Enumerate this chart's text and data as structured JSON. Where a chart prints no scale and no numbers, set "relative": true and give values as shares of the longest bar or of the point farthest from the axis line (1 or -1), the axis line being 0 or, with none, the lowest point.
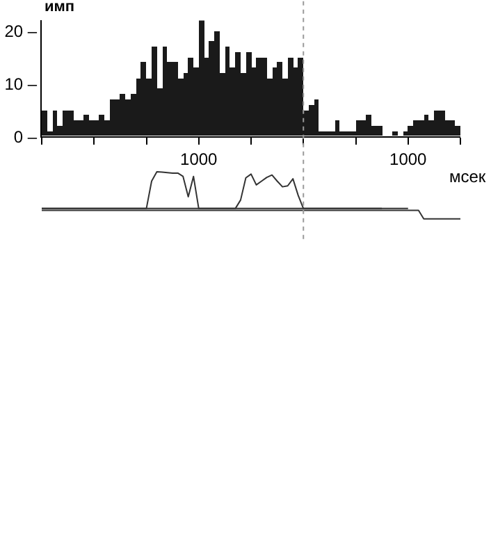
{
  "chart_data": [
    {
      "type": "histogram",
      "ylabel": "имп",
      "xlabel": "мсек",
      "color": "#1a1a1a",
      "bins": [
        -2500,
        -2450,
        -2400,
        -2350,
        -2300,
        -2250,
        -2200,
        -2150,
        -2100,
        -2050,
        -2000,
        -1950,
        -1900,
        -1850,
        -1800,
        -1750,
        -1700,
        -1650,
        -1600,
        -1550,
        -1500,
        -1450,
        -1400,
        -1350,
        -1300,
        -1250,
        -1200,
        -1150,
        -1100,
        -1050,
        -1000,
        -950,
        -900,
        -850,
        -800,
        -750,
        -700,
        -650,
        -600,
        -550,
        -500,
        -450,
        -400,
        -350,
        -300,
        -250,
        -200,
        -150,
        -100,
        -50,
        0,
        50,
        100,
        150,
        200,
        250,
        300,
        350,
        400,
        450,
        500,
        550,
        600,
        650,
        700,
        750,
        800,
        850,
        900,
        950,
        1000,
        1050,
        1100,
        1150,
        1200,
        1250,
        1300,
        1350,
        1400,
        1450,
        1500
      ],
      "values": [
        5,
        1,
        5,
        2,
        5,
        5,
        3,
        3,
        4,
        3,
        3,
        4,
        3,
        7,
        7,
        8,
        7,
        8,
        11,
        14,
        11,
        17,
        9,
        17,
        14,
        14,
        11,
        12,
        15,
        13,
        22,
        15,
        18,
        20,
        12,
        17,
        13,
        16,
        12,
        16,
        13,
        15,
        15,
        11,
        13,
        14,
        11,
        15,
        13,
        15,
        5,
        6,
        7,
        1,
        1,
        1,
        3,
        1,
        1,
        1,
        3,
        3,
        4,
        2,
        2,
        0,
        0,
        1,
        0,
        1,
        2,
        3,
        3,
        4,
        3,
        5,
        5,
        3,
        3,
        2
      ],
      "xlim": [
        -2500,
        1500
      ],
      "xticks": [
        {
          "value": -2500,
          "label": null
        },
        {
          "value": -2000,
          "label": null
        },
        {
          "value": -1500,
          "label": null
        },
        {
          "value": -1000,
          "label": "1000"
        },
        {
          "value": -500,
          "label": null
        },
        {
          "value": 0,
          "label": null
        },
        {
          "value": 500,
          "label": null
        },
        {
          "value": 1000,
          "label": "1000"
        },
        {
          "value": 1500,
          "label": null
        }
      ],
      "ylim": [
        0,
        22
      ],
      "yticks": [
        {
          "value": 0,
          "label": "0 –"
        },
        {
          "value": 10,
          "label": "10 –"
        },
        {
          "value": 20,
          "label": "20 –"
        }
      ],
      "ref_lines": [
        {
          "axis": "x",
          "value": 0,
          "color": "#999999",
          "line_style": "dotted"
        }
      ]
    },
    {
      "type": "line",
      "relative": true,
      "categories": [
        null,
        null,
        null,
        null,
        null,
        null,
        null,
        null,
        null,
        null,
        null,
        null,
        null,
        null,
        null,
        null,
        null,
        null,
        null,
        null,
        null,
        null,
        null,
        null,
        null,
        null,
        null,
        null,
        null,
        null,
        null,
        null,
        null,
        null,
        null,
        null,
        null,
        null,
        null,
        null,
        null,
        null,
        null,
        null,
        null,
        null,
        null,
        null,
        null,
        null,
        null,
        null,
        null,
        null,
        null,
        null,
        null,
        null,
        null,
        null,
        null,
        null,
        null,
        null,
        null,
        null,
        null,
        null,
        null,
        null,
        null,
        null,
        null,
        null,
        null,
        null,
        null,
        null,
        null,
        null,
        null
      ],
      "series": [
        {
          "color": "#333333",
          "values": [
            0.22,
            0.22,
            0.22,
            0.22,
            0.22,
            0.22,
            0.22,
            0.22,
            0.22,
            0.22,
            0.22,
            0.22,
            0.22,
            0.22,
            0.22,
            0.22,
            0.22,
            0.22,
            0.22,
            0.22,
            0.22,
            0.8,
            1,
            0.99,
            0.98,
            0.97,
            0.97,
            0.9,
            0.47,
            0.9,
            0.22,
            0.22,
            0.22,
            0.22,
            0.22,
            0.22,
            0.22,
            0.22,
            0.22,
            0.22,
            0.22,
            0.22,
            0.22,
            0.22,
            0.22,
            0.22,
            0.22,
            0.22,
            0.22,
            0.22,
            0.22,
            0.22,
            0.22,
            0.22,
            0.22,
            0.22,
            0.22,
            0.22,
            0.22,
            0.22,
            0.22,
            0.22,
            0.22,
            0.22,
            0.22,
            0.22,
            0.22,
            0.22,
            0.22,
            0.22,
            0.22,
            null,
            null,
            null,
            null,
            null,
            null,
            null,
            null,
            null,
            null
          ]
        },
        {
          "color": "#333333",
          "values": [
            0.22,
            0.22,
            0.22,
            0.22,
            0.22,
            0.22,
            0.22,
            0.22,
            0.22,
            0.22,
            0.22,
            0.22,
            0.22,
            0.22,
            0.22,
            0.22,
            0.22,
            0.22,
            0.22,
            0.22,
            0.22,
            0.22,
            0.22,
            0.22,
            0.22,
            0.22,
            0.22,
            0.22,
            0.22,
            0.22,
            0.22,
            0.22,
            0.22,
            0.22,
            0.22,
            0.22,
            0.22,
            0.22,
            0.4,
            0.87,
            0.95,
            0.72,
            0.8,
            0.88,
            0.93,
            0.8,
            0.68,
            0.7,
            0.85,
            0.5,
            0.22,
            0.22,
            0.22,
            0.22,
            0.22,
            0.22,
            0.22,
            0.22,
            0.22,
            0.22,
            0.22,
            0.22,
            0.22,
            0.22,
            0.22,
            0.22,
            null,
            null,
            null,
            null,
            null,
            null,
            null,
            null,
            null,
            null,
            null,
            null,
            null,
            null,
            null
          ]
        },
        {
          "color": "#333333",
          "values": [
            0.18,
            0.18,
            0.18,
            0.18,
            0.18,
            0.18,
            0.18,
            0.18,
            0.18,
            0.18,
            0.18,
            0.18,
            0.18,
            0.18,
            0.18,
            0.18,
            0.18,
            0.18,
            0.18,
            0.18,
            0.18,
            0.18,
            0.18,
            0.18,
            0.18,
            0.18,
            0.18,
            0.18,
            0.18,
            0.18,
            0.18,
            0.18,
            0.18,
            0.18,
            0.18,
            0.18,
            0.18,
            0.18,
            0.18,
            0.18,
            0.18,
            0.18,
            0.18,
            0.18,
            0.18,
            0.18,
            0.18,
            0.18,
            0.18,
            0.18,
            0.18,
            0.18,
            0.18,
            0.18,
            0.18,
            0.18,
            0.18,
            0.18,
            0.18,
            0.18,
            0.18,
            0.18,
            0.18,
            0.18,
            0.18,
            0.18,
            0.18,
            0.18,
            0.18,
            0.18,
            0.18,
            0.18,
            0.18,
            0,
            0,
            0,
            0,
            0,
            0,
            0,
            0
          ]
        }
      ]
    }
  ]
}
